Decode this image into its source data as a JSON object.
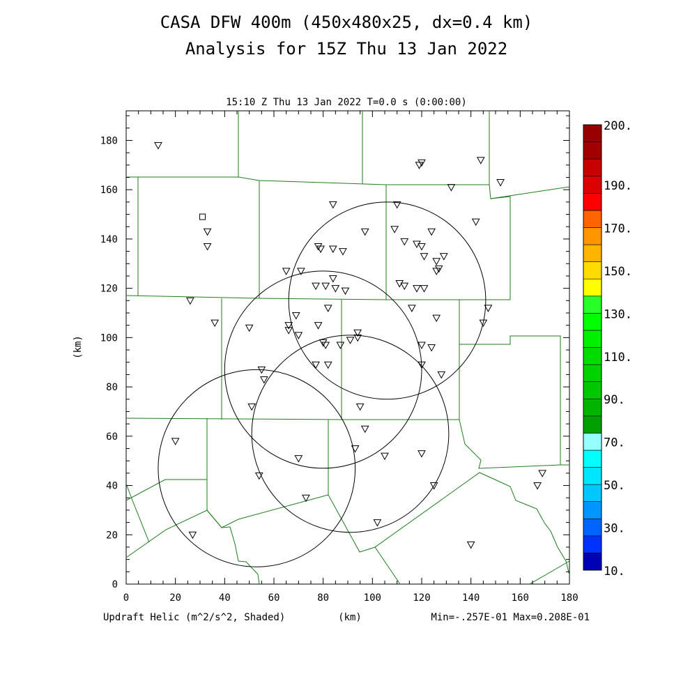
{
  "title_line1": "CASA DFW 400m (450x480x25, dx=0.4 km)",
  "title_line2": "Analysis for 15Z Thu 13 Jan 2022",
  "time_label": "15:10 Z Thu 13 Jan 2022   T=0.0 s (0:00:00)",
  "field_label": "Updraft Helic (m^2/s^2, Shaded)",
  "x_unit": "(km)",
  "y_unit": "(km)",
  "min_max": "Min=-.257E-01 Max=0.208E-01",
  "axes": {
    "xlim": [
      0,
      180
    ],
    "ylim": [
      0,
      192
    ],
    "xticks": [
      "0",
      "20",
      "40",
      "60",
      "80",
      "100",
      "120",
      "140",
      "160",
      "180"
    ],
    "yticks": [
      "0",
      "20",
      "40",
      "60",
      "80",
      "100",
      "120",
      "140",
      "160",
      "180"
    ]
  },
  "colorbar": {
    "colors": [
      "#0000b4",
      "#0032ff",
      "#0064ff",
      "#0096ff",
      "#00c8ff",
      "#00e6ff",
      "#00ffff",
      "#96ffff",
      "#00a000",
      "#00b400",
      "#00c800",
      "#00d200",
      "#00dc00",
      "#00f000",
      "#00ff00",
      "#28ff28",
      "#ffff00",
      "#ffdc00",
      "#ffb400",
      "#ff9600",
      "#ff6400",
      "#ff0000",
      "#dc0000",
      "#c80000",
      "#a00000",
      "#960000"
    ],
    "labels": [
      "10.",
      "30.",
      "50.",
      "70.",
      "90.",
      "110.",
      "130.",
      "150.",
      "170.",
      "190.",
      "200."
    ]
  },
  "radar_rings": [
    {
      "cx": 106,
      "cy": 115,
      "r": 40
    },
    {
      "cx": 80,
      "cy": 87,
      "r": 40
    },
    {
      "cx": 91,
      "cy": 61,
      "r": 40
    },
    {
      "cx": 53,
      "cy": 47,
      "r": 40
    }
  ],
  "stations": [
    [
      13,
      178
    ],
    [
      119,
      170
    ],
    [
      120,
      171
    ],
    [
      144,
      172
    ],
    [
      152,
      163
    ],
    [
      132,
      161
    ],
    [
      84,
      154
    ],
    [
      110,
      154
    ],
    [
      142,
      147
    ],
    [
      33,
      143
    ],
    [
      97,
      143
    ],
    [
      109,
      144
    ],
    [
      124,
      143
    ],
    [
      78,
      137
    ],
    [
      79,
      136
    ],
    [
      84,
      136
    ],
    [
      88,
      135
    ],
    [
      113,
      139
    ],
    [
      118,
      138
    ],
    [
      120,
      137
    ],
    [
      121,
      133
    ],
    [
      126,
      131
    ],
    [
      129,
      133
    ],
    [
      127,
      128
    ],
    [
      126,
      127
    ],
    [
      33,
      137
    ],
    [
      65,
      127
    ],
    [
      71,
      127
    ],
    [
      77,
      121
    ],
    [
      81,
      121
    ],
    [
      84,
      124
    ],
    [
      85,
      120
    ],
    [
      89,
      119
    ],
    [
      111,
      122
    ],
    [
      113,
      121
    ],
    [
      118,
      120
    ],
    [
      121,
      120
    ],
    [
      26,
      115
    ],
    [
      36,
      106
    ],
    [
      69,
      109
    ],
    [
      82,
      112
    ],
    [
      116,
      112
    ],
    [
      126,
      108
    ],
    [
      147,
      112
    ],
    [
      145,
      106
    ],
    [
      50,
      104
    ],
    [
      66,
      105
    ],
    [
      66,
      103
    ],
    [
      70,
      101
    ],
    [
      78,
      105
    ],
    [
      80,
      98
    ],
    [
      81,
      97
    ],
    [
      87,
      97
    ],
    [
      91,
      99
    ],
    [
      94,
      100
    ],
    [
      94,
      102
    ],
    [
      120,
      97
    ],
    [
      124,
      96
    ],
    [
      55,
      87
    ],
    [
      56,
      83
    ],
    [
      77,
      89
    ],
    [
      82,
      89
    ],
    [
      120,
      89
    ],
    [
      128,
      85
    ],
    [
      51,
      72
    ],
    [
      95,
      72
    ],
    [
      97,
      63
    ],
    [
      20,
      58
    ],
    [
      93,
      55
    ],
    [
      70,
      51
    ],
    [
      105,
      52
    ],
    [
      120,
      53
    ],
    [
      54,
      44
    ],
    [
      73,
      35
    ],
    [
      125,
      40
    ],
    [
      27,
      20
    ],
    [
      102,
      25
    ],
    [
      140,
      16
    ],
    [
      167,
      40
    ],
    [
      169,
      45
    ]
  ],
  "square_station": [
    31,
    149
  ]
}
